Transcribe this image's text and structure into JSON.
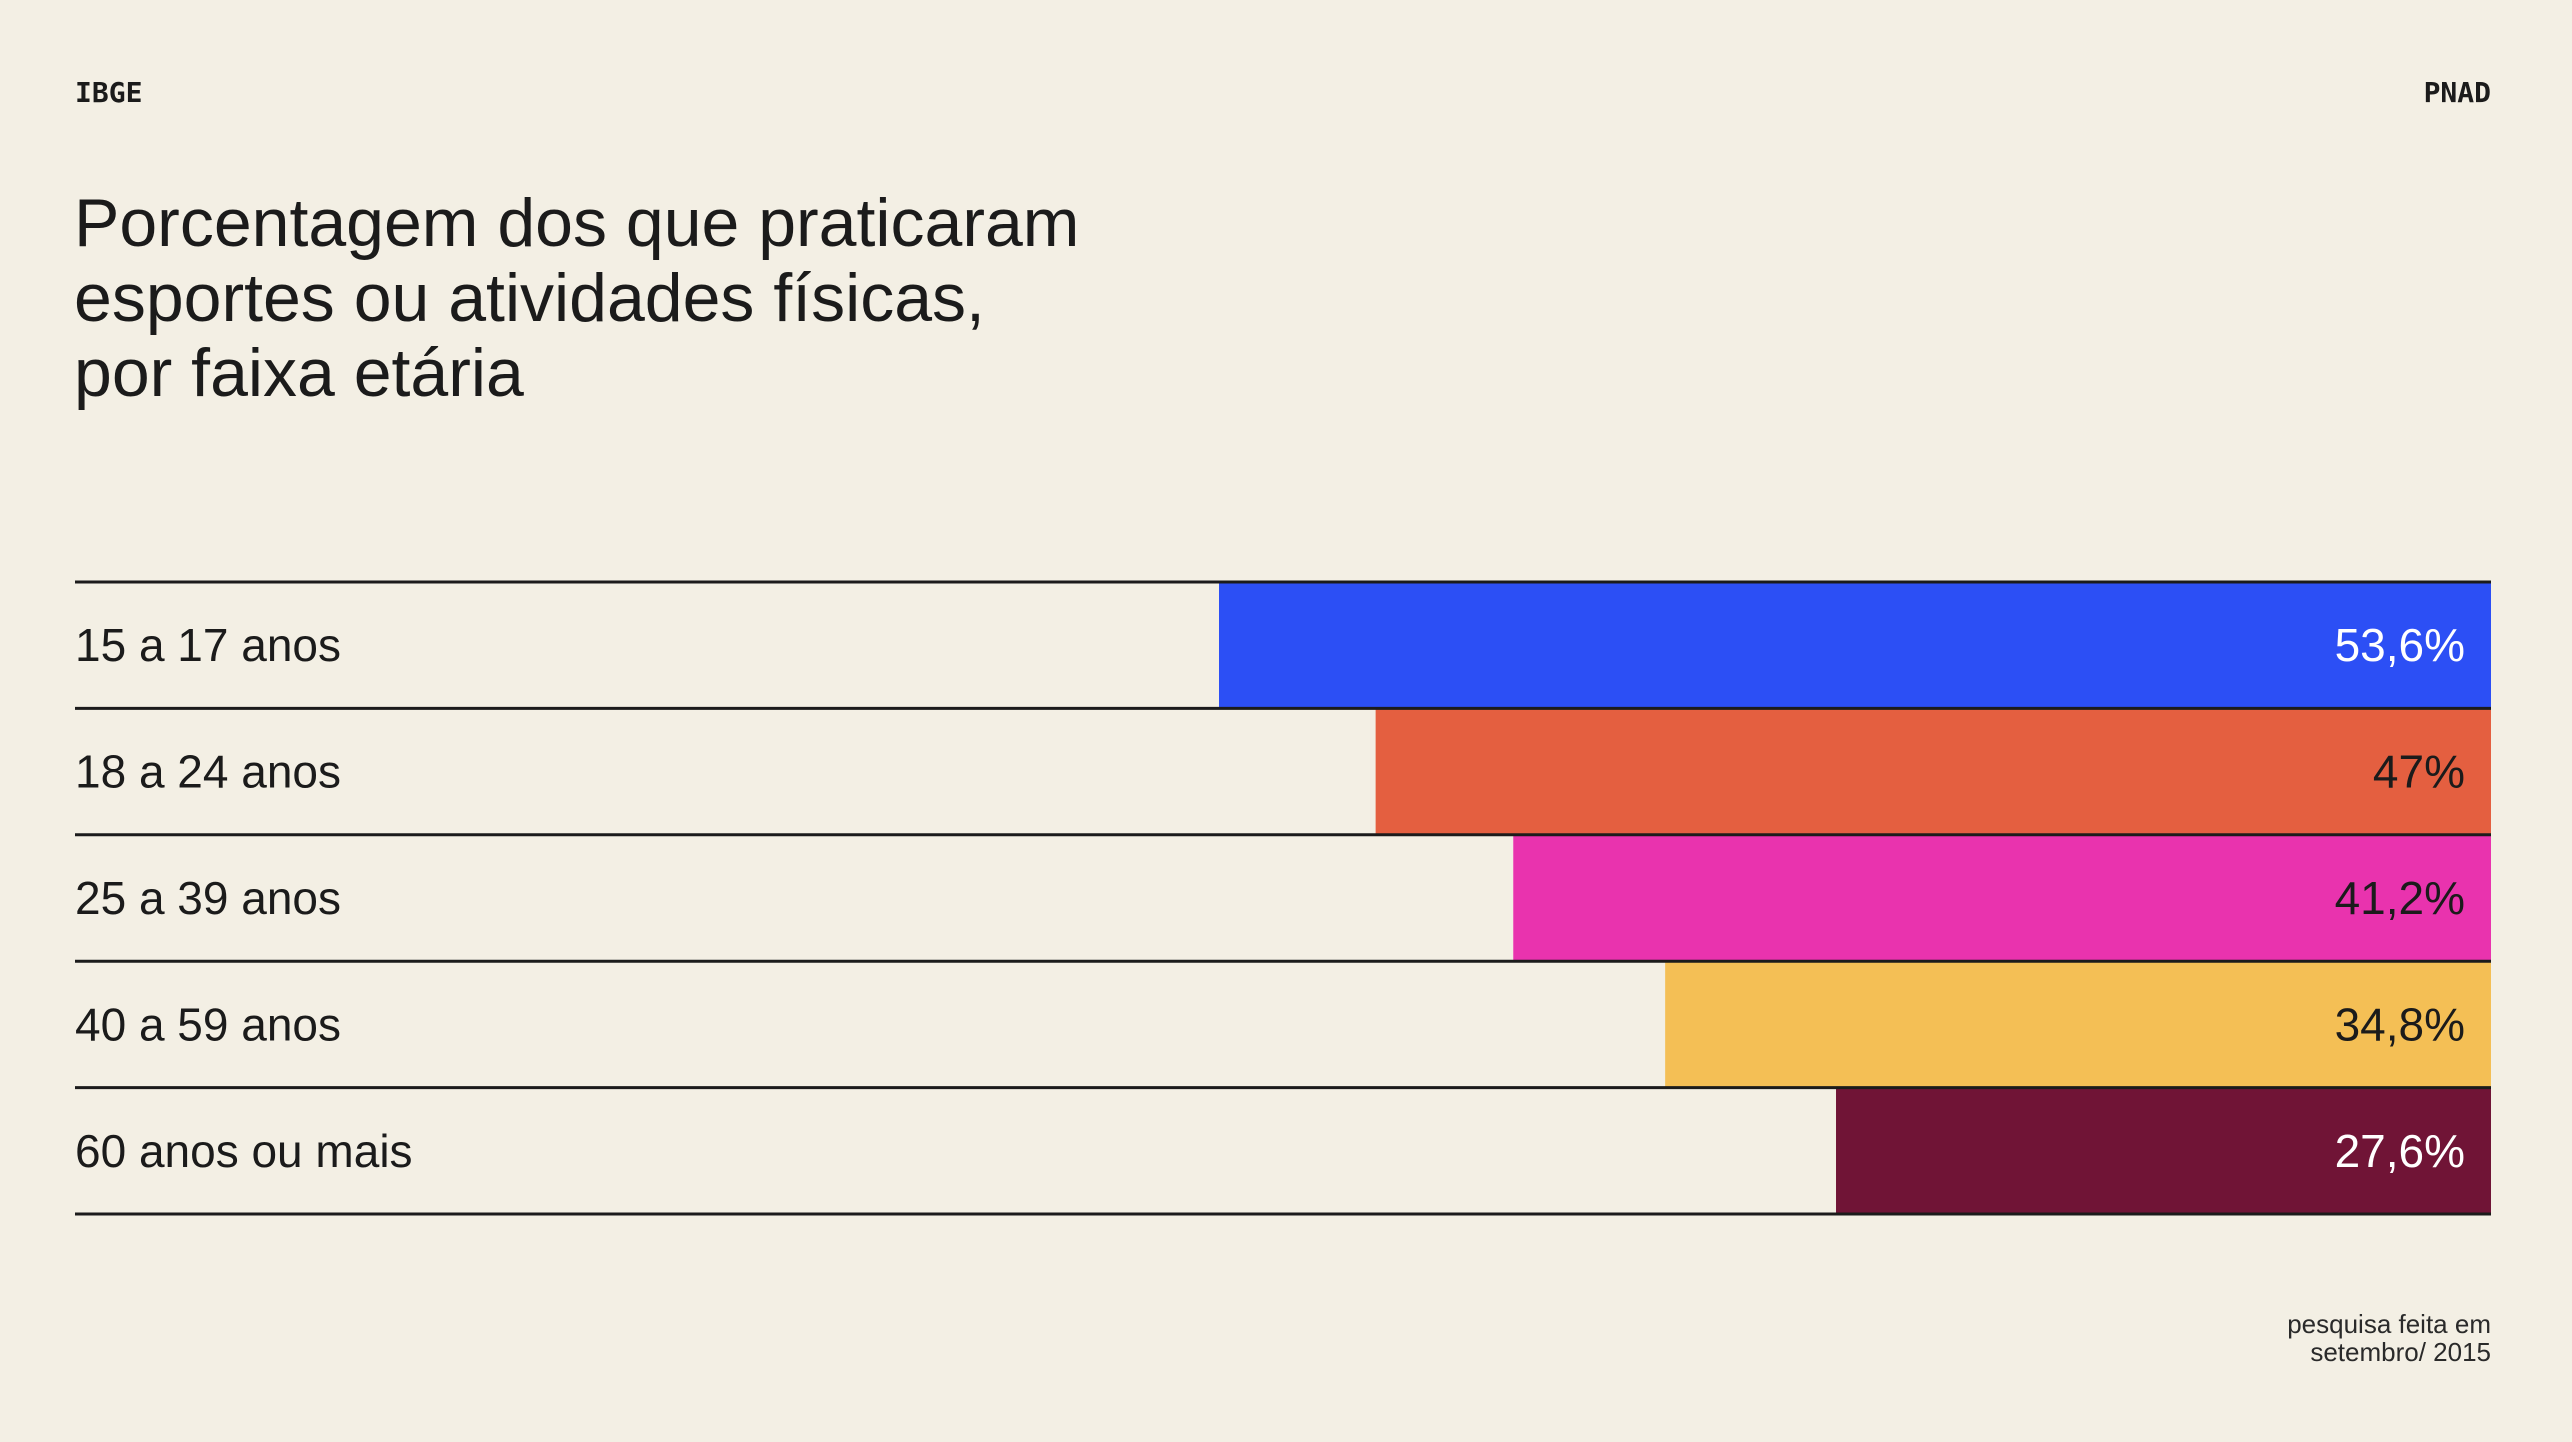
{
  "header": {
    "left_label": "IBGE",
    "right_label": "PNAD"
  },
  "chart_data": {
    "type": "bar",
    "orientation": "horizontal",
    "title_lines": [
      "Porcentagem dos que praticaram",
      "esportes ou atividades físicas,",
      "por faixa etária"
    ],
    "categories": [
      "15 a 17 anos",
      "18 a 24 anos",
      "25 a 39 anos",
      "40 a 59 anos",
      "60 anos ou mais"
    ],
    "values": [
      53.6,
      47,
      41.2,
      34.8,
      27.6
    ],
    "value_labels": [
      "53,6%",
      "47%",
      "41,2%",
      "34,8%",
      "27,6%"
    ],
    "colors": [
      "#2c4ff5",
      "#e45f40",
      "#e933ae",
      "#f4bf55",
      "#701436"
    ],
    "label_colors": [
      "#ffffff",
      "#1b1b1b",
      "#1b1b1b",
      "#1b1b1b",
      "#ffffff"
    ],
    "xlabel": "",
    "ylabel": "",
    "grid": false
  },
  "footer": {
    "note_lines": [
      "pesquisa feita em",
      "setembro/ 2015"
    ]
  }
}
